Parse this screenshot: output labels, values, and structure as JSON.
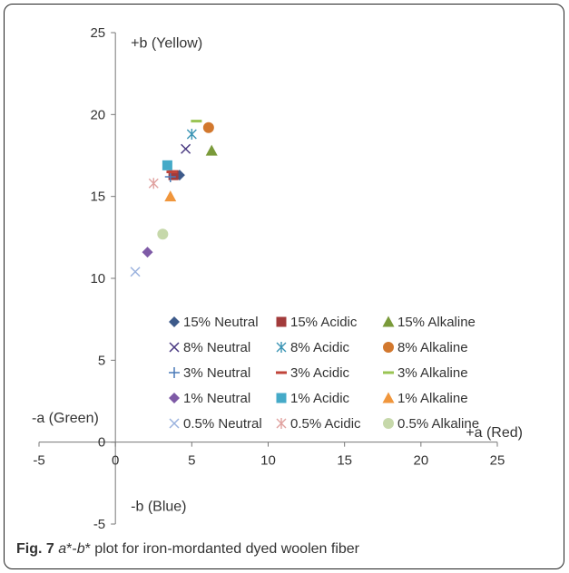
{
  "chart_data": {
    "type": "scatter",
    "title": "",
    "xlabel": "",
    "ylabel": "",
    "xlim": [
      -5,
      25
    ],
    "ylim": [
      -5,
      25
    ],
    "x_ticks": [
      "-5",
      "0",
      "5",
      "10",
      "15",
      "20",
      "25"
    ],
    "y_ticks": [
      "-5",
      "0",
      "5",
      "10",
      "15",
      "20",
      "25"
    ],
    "grid": false,
    "legend": "inside-lower-center",
    "axis_annotations": {
      "pos_b": "+b (Yellow)",
      "neg_a": "-a (Green)",
      "pos_a": "+a (Red)",
      "neg_b": "-b (Blue)"
    },
    "series": [
      {
        "name": "15% Neutral",
        "marker": "diamond",
        "color": "#3d5a8a",
        "x": [
          4.2
        ],
        "y": [
          16.3
        ]
      },
      {
        "name": "15% Acidic",
        "marker": "square",
        "color": "#a23b3b",
        "x": [
          3.8
        ],
        "y": [
          16.3
        ]
      },
      {
        "name": "15% Alkaline",
        "marker": "triangle",
        "color": "#7a9a3a",
        "x": [
          6.3
        ],
        "y": [
          17.8
        ]
      },
      {
        "name": "8% Neutral",
        "marker": "x",
        "color": "#4a3a82",
        "x": [
          4.6
        ],
        "y": [
          17.9
        ]
      },
      {
        "name": "8% Acidic",
        "marker": "star",
        "color": "#3a94b4",
        "x": [
          5.0
        ],
        "y": [
          18.8
        ]
      },
      {
        "name": "8% Alkaline",
        "marker": "circle",
        "color": "#d2782e",
        "x": [
          6.1
        ],
        "y": [
          19.2
        ]
      },
      {
        "name": "3% Neutral",
        "marker": "plus",
        "color": "#4a7ab8",
        "x": [
          3.6
        ],
        "y": [
          16.2
        ]
      },
      {
        "name": "3% Acidic",
        "marker": "dash",
        "color": "#c0443a",
        "x": [
          3.7
        ],
        "y": [
          16.5
        ]
      },
      {
        "name": "3% Alkaline",
        "marker": "dash",
        "color": "#9ac454",
        "x": [
          5.3
        ],
        "y": [
          19.6
        ]
      },
      {
        "name": "1% Neutral",
        "marker": "diamond",
        "color": "#7e5aa6",
        "x": [
          2.1
        ],
        "y": [
          11.6
        ]
      },
      {
        "name": "1% Acidic",
        "marker": "square",
        "color": "#45aac8",
        "x": [
          3.4
        ],
        "y": [
          16.9
        ]
      },
      {
        "name": "1% Alkaline",
        "marker": "triangle",
        "color": "#f0963c",
        "x": [
          3.6
        ],
        "y": [
          15.0
        ]
      },
      {
        "name": "0.5% Neutral",
        "marker": "x",
        "color": "#9ab2de",
        "x": [
          1.3
        ],
        "y": [
          10.4
        ]
      },
      {
        "name": "0.5% Acidic",
        "marker": "star",
        "color": "#e0a2a0",
        "x": [
          2.5
        ],
        "y": [
          15.8
        ]
      },
      {
        "name": "0.5% Alkaline",
        "marker": "circle",
        "color": "#c6d8aa",
        "x": [
          3.1
        ],
        "y": [
          12.7
        ]
      }
    ]
  },
  "caption": {
    "label": "Fig. 7",
    "a_var": "a",
    "dash": "*-",
    "b_var": "b",
    "rest": "* plot for iron-mordanted dyed woolen fiber"
  }
}
